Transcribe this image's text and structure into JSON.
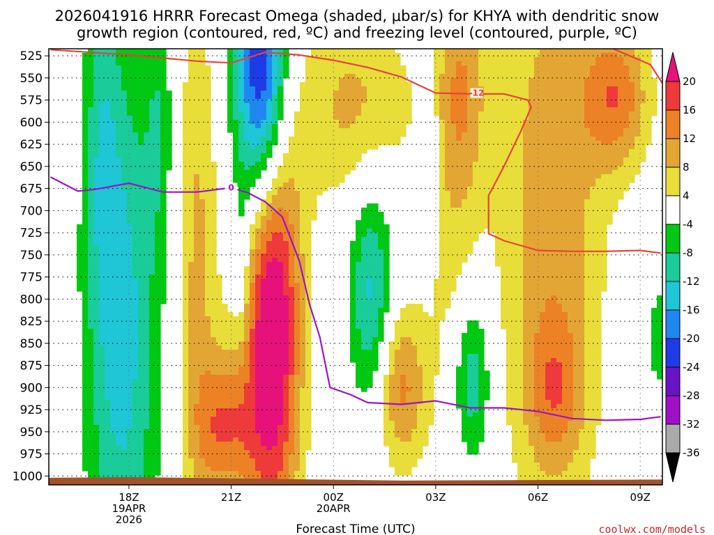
{
  "chart_data": {
    "type": "heatmap",
    "title_lines": [
      "2026041916 HRRR Forecast Omega (shaded, μbar/s) for KHYA with dendritic snow",
      "growth region (contoured, red, ºC) and freezing level (contoured, purple, ºC)"
    ],
    "xlabel": "Forecast Time (UTC)",
    "ylabel": "",
    "y_axis": {
      "scale": "pressure",
      "reversed": true,
      "ylim": [
        1010,
        517
      ],
      "ticks": [
        525,
        550,
        575,
        600,
        625,
        650,
        675,
        700,
        725,
        750,
        775,
        800,
        825,
        850,
        875,
        900,
        925,
        950,
        975,
        1000
      ]
    },
    "x_axis": {
      "unit": "hours since 2026-04-19 16Z",
      "xlim": [
        -0.35,
        17.65
      ],
      "ticks": [
        {
          "hour": 2,
          "lines": [
            "18Z",
            "19APR",
            "2026"
          ]
        },
        {
          "hour": 5,
          "lines": [
            "21Z"
          ]
        },
        {
          "hour": 8,
          "lines": [
            "00Z",
            "20APR"
          ]
        },
        {
          "hour": 11,
          "lines": [
            "03Z"
          ]
        },
        {
          "hour": 14,
          "lines": [
            "06Z"
          ]
        },
        {
          "hour": 17,
          "lines": [
            "09Z"
          ]
        }
      ]
    },
    "grid": true,
    "colorbar": {
      "units": "μbar/s",
      "labels": [
        "20",
        "16",
        "12",
        "8",
        "4",
        "-4",
        "-8",
        "-12",
        "-16",
        "-20",
        "-24",
        "-28",
        "-32",
        "-36"
      ],
      "bins": [
        {
          "lo": 20,
          "hi": 99,
          "color": "#e6117a"
        },
        {
          "lo": 16,
          "hi": 20,
          "color": "#ee3a3a"
        },
        {
          "lo": 12,
          "hi": 16,
          "color": "#ec8225"
        },
        {
          "lo": 8,
          "hi": 12,
          "color": "#e3a634"
        },
        {
          "lo": 4,
          "hi": 8,
          "color": "#e8dd39"
        },
        {
          "lo": -4,
          "hi": 4,
          "color": "#ffffff"
        },
        {
          "lo": -8,
          "hi": -4,
          "color": "#00c813"
        },
        {
          "lo": -12,
          "hi": -8,
          "color": "#19cc9a"
        },
        {
          "lo": -16,
          "hi": -12,
          "color": "#1ec6d6"
        },
        {
          "lo": -20,
          "hi": -16,
          "color": "#1e88f0"
        },
        {
          "lo": -24,
          "hi": -20,
          "color": "#1e3ce6"
        },
        {
          "lo": -28,
          "hi": -24,
          "color": "#6a14c8"
        },
        {
          "lo": -32,
          "hi": -28,
          "color": "#a010c8"
        },
        {
          "lo": -36,
          "hi": -32,
          "color": "#aaaaaa"
        },
        {
          "lo": -99,
          "hi": -36,
          "color": "#000000"
        }
      ]
    },
    "omega_features": [
      {
        "name": "upward-motion-18z",
        "t_center": 1.8,
        "p_center": 840,
        "t_radius": 0.75,
        "p_radius": 230,
        "peak": -14
      },
      {
        "name": "upward-motion-18z-aloft",
        "t_center": 1.2,
        "p_center": 620,
        "t_radius": 0.35,
        "p_radius": 140,
        "peak": -7
      },
      {
        "name": "upward-motion-19z",
        "t_center": 2.9,
        "p_center": 600,
        "t_radius": 0.3,
        "p_radius": 110,
        "peak": -6
      },
      {
        "name": "upward-motion-21z-aloft",
        "t_center": 5.9,
        "p_center": 560,
        "t_radius": 0.55,
        "p_radius": 110,
        "peak": -30
      },
      {
        "name": "upward-motion-21z-column",
        "t_center": 5.3,
        "p_center": 760,
        "t_radius": 0.18,
        "p_radius": 70,
        "peak": -6
      },
      {
        "name": "upward-motion-01z",
        "t_center": 9.1,
        "p_center": 790,
        "t_radius": 0.45,
        "p_radius": 90,
        "peak": -13
      },
      {
        "name": "upward-motion-03z",
        "t_center": 10.85,
        "p_center": 630,
        "t_radius": 0.18,
        "p_radius": 70,
        "peak": -6
      },
      {
        "name": "upward-motion-04z",
        "t_center": 12.05,
        "p_center": 890,
        "t_radius": 0.4,
        "p_radius": 70,
        "peak": -13
      },
      {
        "name": "upward-motion-09z",
        "t_center": 17.55,
        "p_center": 845,
        "t_radius": 0.25,
        "p_radius": 55,
        "peak": -6
      },
      {
        "name": "downward-motion-22z",
        "t_center": 6.2,
        "p_center": 820,
        "t_radius": 0.6,
        "p_radius": 180,
        "peak": 27
      },
      {
        "name": "downward-motion-20z",
        "t_center": 4.0,
        "p_center": 760,
        "t_radius": 0.45,
        "p_radius": 230,
        "peak": 9
      },
      {
        "name": "downward-motion-21z-low",
        "t_center": 4.8,
        "p_center": 945,
        "t_radius": 0.6,
        "p_radius": 60,
        "peak": 14
      },
      {
        "name": "downward-motion-02z",
        "t_center": 10.0,
        "p_center": 900,
        "t_radius": 0.5,
        "p_radius": 65,
        "peak": 13
      },
      {
        "name": "downward-motion-00z-aloft",
        "t_center": 8.6,
        "p_center": 580,
        "t_radius": 1.2,
        "p_radius": 80,
        "peak": 9
      },
      {
        "name": "downward-motion-06z",
        "t_center": 14.4,
        "p_center": 700,
        "t_radius": 1.1,
        "p_radius": 250,
        "peak": 11
      },
      {
        "name": "downward-motion-08z",
        "t_center": 16.3,
        "p_center": 570,
        "t_radius": 0.7,
        "p_radius": 60,
        "peak": 14
      },
      {
        "name": "downward-motion-06z-low",
        "t_center": 14.5,
        "p_center": 905,
        "t_radius": 0.6,
        "p_radius": 60,
        "peak": 9
      },
      {
        "name": "downward-motion-02z-aloft",
        "t_center": 11.8,
        "p_center": 560,
        "t_radius": 0.5,
        "p_radius": 80,
        "peak": 8
      },
      {
        "name": "downward-motion-03z-col",
        "t_center": 11.5,
        "p_center": 700,
        "t_radius": 0.6,
        "p_radius": 200,
        "peak": 6
      }
    ],
    "series": [
      {
        "name": "dendritic-growth-minus12C",
        "label": "-12",
        "color": "#e8413d",
        "label_at": {
          "t": 12.2,
          "p": 567
        },
        "points": [
          [
            -0.3,
            518
          ],
          [
            2.0,
            524
          ],
          [
            4.0,
            531
          ],
          [
            5.0,
            533
          ],
          [
            6.0,
            521
          ],
          [
            7.0,
            524
          ],
          [
            8.0,
            530
          ],
          [
            9.0,
            538
          ],
          [
            10.0,
            549
          ],
          [
            11.0,
            567
          ],
          [
            12.0,
            568
          ],
          [
            13.0,
            568
          ],
          [
            13.7,
            575
          ],
          [
            13.8,
            583
          ],
          [
            13.5,
            610
          ],
          [
            13.0,
            650
          ],
          [
            12.55,
            683
          ],
          [
            12.55,
            726
          ],
          [
            13.0,
            734
          ],
          [
            14.0,
            745
          ],
          [
            15.0,
            746
          ],
          [
            16.0,
            746
          ],
          [
            17.0,
            745
          ],
          [
            17.6,
            748
          ]
        ]
      },
      {
        "name": "dendritic-growth-minus12C-upper",
        "label": "",
        "color": "#e8413d",
        "points": [
          [
            16.2,
            517
          ],
          [
            17.0,
            530
          ],
          [
            17.3,
            535
          ],
          [
            17.65,
            556
          ]
        ]
      },
      {
        "name": "freezing-level-0C",
        "label": "0",
        "color": "#9a14c8",
        "label_at": {
          "t": 5.0,
          "p": 674
        },
        "points": [
          [
            -0.3,
            662
          ],
          [
            0.5,
            678
          ],
          [
            1.0,
            676
          ],
          [
            2.0,
            669
          ],
          [
            3.0,
            679
          ],
          [
            4.0,
            679
          ],
          [
            5.0,
            674
          ],
          [
            5.5,
            680
          ],
          [
            6.0,
            690
          ],
          [
            6.5,
            707
          ],
          [
            7.0,
            757
          ],
          [
            7.3,
            806
          ],
          [
            7.6,
            843
          ],
          [
            7.9,
            900
          ],
          [
            8.5,
            908
          ],
          [
            9.0,
            917
          ],
          [
            10.0,
            919
          ],
          [
            11.0,
            915
          ],
          [
            12.0,
            923
          ],
          [
            13.0,
            923
          ],
          [
            14.0,
            927
          ],
          [
            15.0,
            935
          ],
          [
            16.0,
            937
          ],
          [
            17.0,
            936
          ],
          [
            17.6,
            933
          ]
        ]
      }
    ],
    "terrain_color": "#a0522d",
    "credit": "coolwx.com/models"
  }
}
